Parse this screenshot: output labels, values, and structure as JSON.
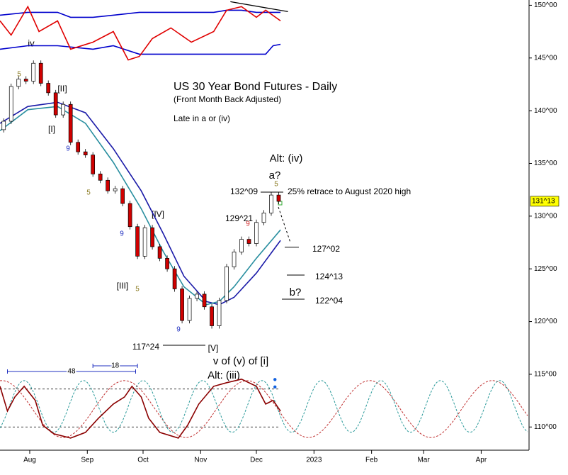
{
  "chart_data": {
    "type": "candlestick",
    "title": "US 30 Year Bond Futures - Daily",
    "subtitle": "(Front Month Back Adjusted)",
    "note": "Late in a or (iv)",
    "xlim": [
      197,
      481
    ],
    "ylim": [
      107.8,
      150.5
    ],
    "xticks": [
      {
        "value": 213,
        "label": "Aug"
      },
      {
        "value": 244,
        "label": "Sep"
      },
      {
        "value": 274,
        "label": "Oct"
      },
      {
        "value": 305,
        "label": "Nov"
      },
      {
        "value": 335,
        "label": "Dec"
      },
      {
        "value": 366,
        "label": "2023"
      },
      {
        "value": 397,
        "label": "Feb"
      },
      {
        "value": 425,
        "label": "Mar"
      },
      {
        "value": 456,
        "label": "Apr"
      }
    ],
    "yticks": [
      {
        "value": 110,
        "label": "110^00"
      },
      {
        "value": 115,
        "label": "115^00"
      },
      {
        "value": 120,
        "label": "120^00"
      },
      {
        "value": 125,
        "label": "125^00"
      },
      {
        "value": 130,
        "label": "130^00"
      },
      {
        "value": 135,
        "label": "135^00"
      },
      {
        "value": 140,
        "label": "140^00"
      },
      {
        "value": 145,
        "label": "145^00"
      },
      {
        "value": 150,
        "label": "150^00"
      }
    ],
    "x": [
      199,
      203,
      207,
      211,
      215,
      219,
      223,
      227,
      231,
      235,
      239,
      243,
      247,
      251,
      255,
      259,
      263,
      267,
      271,
      275,
      279,
      283,
      287,
      291,
      295,
      299,
      303,
      307,
      311,
      315,
      319,
      323,
      327,
      331,
      335,
      339,
      343,
      347
    ],
    "open": [
      138.2,
      139.0,
      142.3,
      143.0,
      142.8,
      144.5,
      142.6,
      141.7,
      139.6,
      140.6,
      137.0,
      136.1,
      135.8,
      134.0,
      133.4,
      132.4,
      132.6,
      131.2,
      129.0,
      126.2,
      128.9,
      127.1,
      126.0,
      125.0,
      123.1,
      120.1,
      122.2,
      122.6,
      121.4,
      119.6,
      122.0,
      125.2,
      126.6,
      127.8,
      127.4,
      129.4,
      130.3,
      132.0
    ],
    "close": [
      139.0,
      142.3,
      143.0,
      142.8,
      144.5,
      142.6,
      141.7,
      139.6,
      140.6,
      137.0,
      136.1,
      135.8,
      134.0,
      133.4,
      132.4,
      132.6,
      131.2,
      129.0,
      126.2,
      128.9,
      127.1,
      126.0,
      125.0,
      123.1,
      120.1,
      122.2,
      122.6,
      121.4,
      119.6,
      122.0,
      125.2,
      126.6,
      127.8,
      127.4,
      129.4,
      130.3,
      132.0,
      131.4
    ],
    "up_color": "#ffffff",
    "down_color": "#d00000",
    "last_price": {
      "value": 131.41,
      "label": "131^13"
    },
    "series": [
      {
        "color": "#1a1aa8",
        "x": [
          197,
          212,
          228,
          243,
          258,
          273,
          285,
          296,
          308,
          315,
          323,
          335,
          348
        ],
        "values": [
          138.8,
          140.4,
          140.8,
          139.8,
          136.4,
          132.4,
          128.3,
          124.3,
          121.9,
          121.6,
          122.3,
          124.6,
          127.7
        ]
      },
      {
        "color": "#2a8fa0",
        "x": [
          197,
          212,
          228,
          243,
          258,
          273,
          285,
          296,
          308,
          315,
          323,
          335,
          348
        ],
        "values": [
          138.1,
          140.1,
          140.4,
          138.8,
          135.1,
          130.7,
          126.6,
          123.3,
          121.6,
          121.9,
          123.3,
          126.0,
          128.7
        ]
      },
      {
        "color": "#0000cc",
        "x": [
          197,
          212,
          228,
          235,
          247,
          258,
          272,
          289,
          300,
          312,
          319,
          327,
          335,
          340,
          348
        ],
        "values": [
          149.06,
          149.33,
          149.33,
          148.86,
          148.86,
          149.06,
          149.33,
          149.33,
          149.33,
          149.33,
          149.53,
          149.53,
          149.33,
          149.33,
          149.33
        ]
      },
      {
        "color": "#0000cc",
        "x": [
          197,
          212,
          228,
          247,
          258,
          272,
          289,
          300,
          312,
          327,
          335,
          340,
          344,
          348
        ],
        "values": [
          145.83,
          146.16,
          146.16,
          145.83,
          146.16,
          145.36,
          145.36,
          145.36,
          145.36,
          145.36,
          145.36,
          145.36,
          146.16,
          146.3
        ]
      },
      {
        "color": "#e00000",
        "x": [
          197,
          203,
          212,
          218,
          228,
          235,
          247,
          258,
          266,
          272,
          279,
          289,
          300,
          312,
          319,
          327,
          335,
          340,
          348
        ],
        "values": [
          148.52,
          147.17,
          149.87,
          147.51,
          148.52,
          145.83,
          146.5,
          147.51,
          144.82,
          145.15,
          146.84,
          147.85,
          146.5,
          147.51,
          149.53,
          149.87,
          148.86,
          149.53,
          148.52
        ]
      },
      {
        "color": "#000000",
        "x": [
          321,
          352
        ],
        "values": [
          150.34,
          149.4
        ]
      },
      {
        "color": "#8b0000",
        "x": [
          197,
          201,
          205,
          210,
          216,
          220,
          226,
          235,
          243,
          250,
          258,
          264,
          268,
          273,
          277,
          283,
          293,
          298,
          304,
          312,
          319,
          327,
          335,
          340,
          344,
          348
        ],
        "values": [
          113.86,
          111.51,
          112.85,
          113.86,
          112.52,
          110.16,
          109.35,
          108.95,
          109.49,
          110.83,
          112.18,
          112.85,
          113.86,
          112.85,
          110.83,
          109.49,
          108.95,
          110.16,
          112.18,
          113.86,
          114.2,
          114.54,
          113.86,
          112.18,
          112.52,
          111.51
        ]
      }
    ],
    "bands": [
      113.6,
      110.0
    ],
    "cycles": [
      {
        "label": "48",
        "span": [
          201,
          270
        ],
        "period": 66,
        "peak": 330,
        "center": 111.7,
        "amplitude": 2.7,
        "color": "#c03030"
      },
      {
        "label": "18",
        "span": [
          247,
          271
        ],
        "period": 32,
        "peak": 370,
        "center": 111.95,
        "amplitude": 2.45,
        "color": "#2a9a9a"
      }
    ],
    "markers": {
      "color": "#1060e0",
      "x": [
        345,
        345
      ],
      "values": [
        114.5,
        113.8
      ]
    },
    "levels": [
      {
        "value": 132.28,
        "label": "132^09"
      },
      {
        "value": 127.06,
        "label": "127^02"
      },
      {
        "value": 124.41,
        "label": "124^13"
      },
      {
        "value": 122.125,
        "label": "122^04"
      },
      {
        "value": 117.75,
        "label": "117^24"
      }
    ],
    "annotations": [
      "iv",
      "5",
      "[II]",
      "[I]",
      "9",
      "5",
      "9",
      "[IV]",
      "[III]",
      "5",
      "9",
      "[V]",
      "v of (v) of [i]",
      "Alt: (iii)",
      "Alt: (iv)",
      "a?",
      "5",
      "9",
      "b?",
      "129^21",
      "25% retrace to August 2020 high"
    ]
  }
}
